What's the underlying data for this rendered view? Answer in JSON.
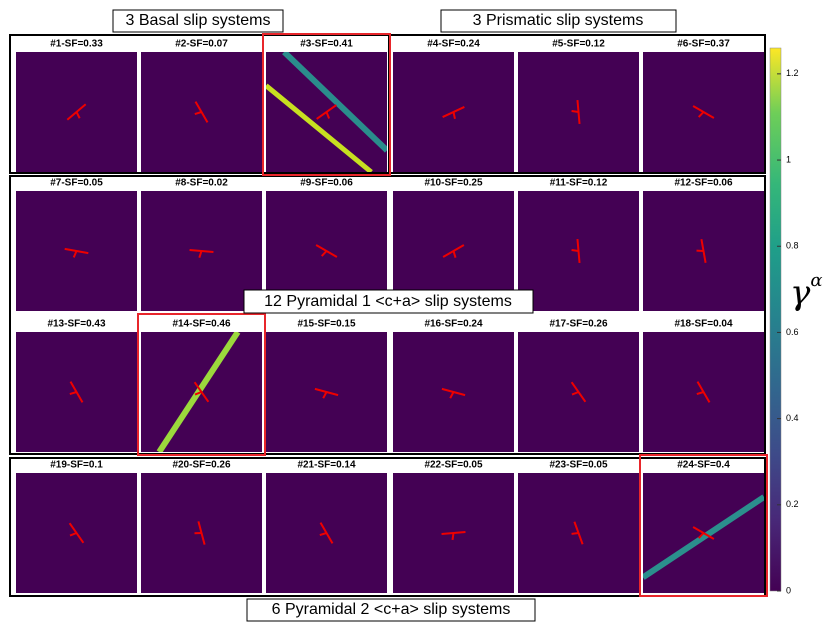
{
  "groups": [
    "3 Basal slip systems",
    "3 Prismatic slip systems",
    "12 Pyramidal 1 <c+a> slip systems",
    "6 Pyramidal 2 <c+a> slip systems"
  ],
  "panels": [
    {
      "title": "#1-SF=0.33"
    },
    {
      "title": "#2-SF=0.07"
    },
    {
      "title": "#3-SF=0.41",
      "highlighted": true
    },
    {
      "title": "#4-SF=0.24"
    },
    {
      "title": "#5-SF=0.12"
    },
    {
      "title": "#6-SF=0.37"
    },
    {
      "title": "#7-SF=0.05"
    },
    {
      "title": "#8-SF=0.02"
    },
    {
      "title": "#9-SF=0.06"
    },
    {
      "title": "#10-SF=0.25"
    },
    {
      "title": "#11-SF=0.12"
    },
    {
      "title": "#12-SF=0.06"
    },
    {
      "title": "#13-SF=0.43"
    },
    {
      "title": "#14-SF=0.46",
      "highlighted": true
    },
    {
      "title": "#15-SF=0.15"
    },
    {
      "title": "#16-SF=0.24"
    },
    {
      "title": "#17-SF=0.26"
    },
    {
      "title": "#18-SF=0.04"
    },
    {
      "title": "#19-SF=0.1"
    },
    {
      "title": "#20-SF=0.26"
    },
    {
      "title": "#21-SF=0.14"
    },
    {
      "title": "#22-SF=0.05"
    },
    {
      "title": "#23-SF=0.05"
    },
    {
      "title": "#24-SF=0.4",
      "highlighted": true
    }
  ],
  "colorbar": {
    "label": "γ",
    "label_superscript": "α",
    "lim": [
      0,
      1.26
    ],
    "ticks": [
      0,
      0.2,
      0.4,
      0.6,
      0.8,
      1,
      1.2
    ]
  }
}
